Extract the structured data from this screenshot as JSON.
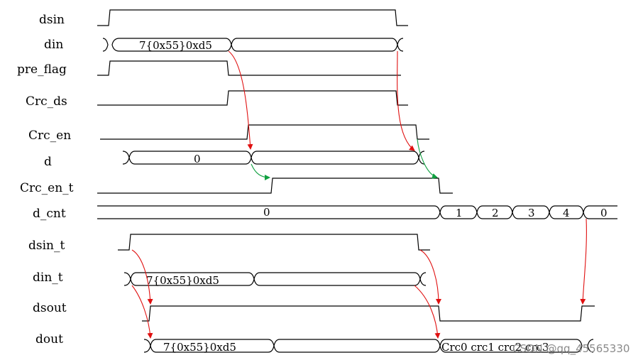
{
  "signals": [
    {
      "id": "dsin",
      "label": "dsin"
    },
    {
      "id": "din",
      "label": "din"
    },
    {
      "id": "pre_flag",
      "label": "pre_flag"
    },
    {
      "id": "crc_ds",
      "label": "Crc_ds"
    },
    {
      "id": "crc_en",
      "label": "Crc_en"
    },
    {
      "id": "d",
      "label": "d"
    },
    {
      "id": "crc_en_t",
      "label": "Crc_en_t"
    },
    {
      "id": "d_cnt",
      "label": "d_cnt"
    },
    {
      "id": "dsin_t",
      "label": "dsin_t"
    },
    {
      "id": "din_t",
      "label": "din_t"
    },
    {
      "id": "dsout",
      "label": "dsout"
    },
    {
      "id": "dout",
      "label": "dout"
    }
  ],
  "values": {
    "din_first": "7{0x55}0xd5",
    "d_first": "0",
    "dcnt_main": "0",
    "dcnt_seq": [
      "1",
      "2",
      "3",
      "4",
      "0"
    ],
    "din_t_first": "7{0x55}0xd5",
    "dout_first": "7{0x55}0xd5",
    "dout_crc": "Crc0  crc1  crc2  crc3"
  },
  "watermark": "CSDN @qq_45565330",
  "colors": {
    "signal": "#000000",
    "arrow_red": "#e01010",
    "arrow_green": "#10a040"
  }
}
